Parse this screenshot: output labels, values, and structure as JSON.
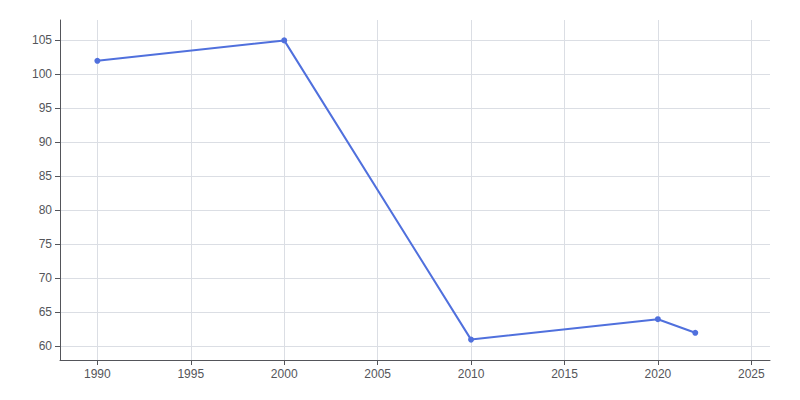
{
  "chart_data": {
    "type": "line",
    "x": [
      1990,
      2000,
      2010,
      2020,
      2022
    ],
    "values": [
      102,
      105,
      61,
      64,
      62
    ],
    "marker": "circle",
    "xlim": [
      1988,
      2026
    ],
    "ylim": [
      58,
      108
    ],
    "xticks": [
      1990,
      1995,
      2000,
      2005,
      2010,
      2015,
      2020,
      2025
    ],
    "yticks": [
      60,
      65,
      70,
      75,
      80,
      85,
      90,
      95,
      100,
      105
    ],
    "grid": true
  }
}
